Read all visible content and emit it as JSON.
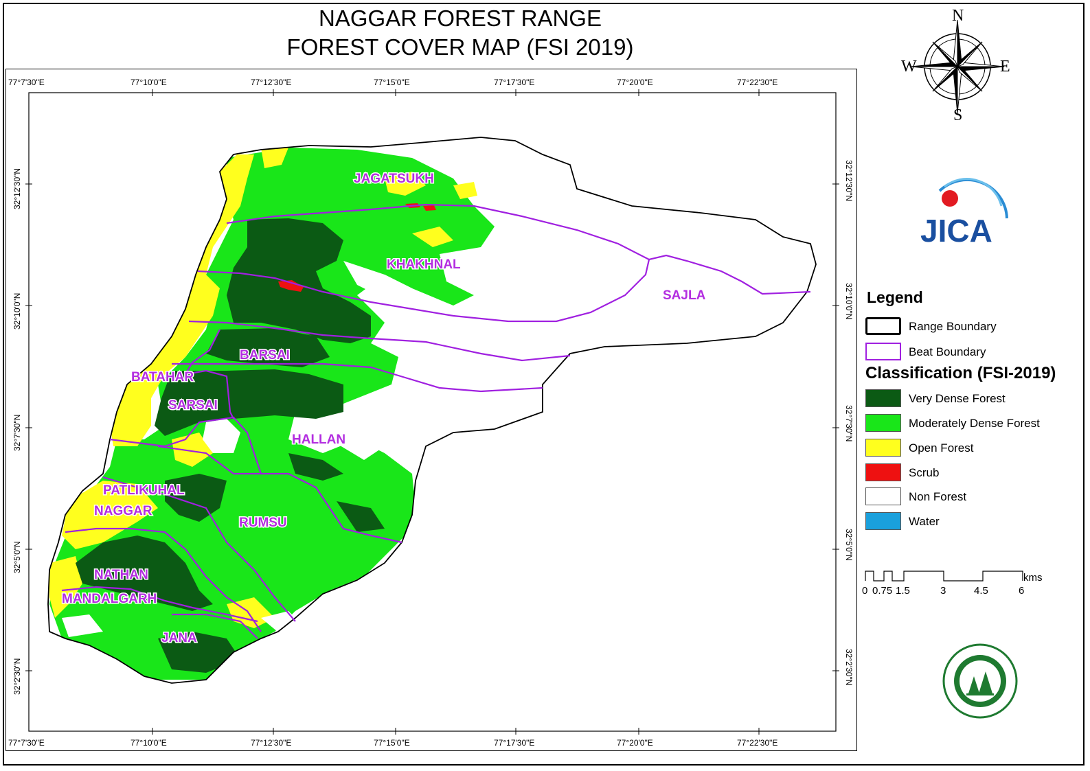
{
  "title": {
    "line1": "NAGGAR FOREST RANGE",
    "line2": "FOREST COVER MAP (FSI 2019)"
  },
  "graticule": {
    "longitudes": [
      "77°7'30\"E",
      "77°10'0\"E",
      "77°12'30\"E",
      "77°15'0\"E",
      "77°17'30\"E",
      "77°20'0\"E",
      "77°22'30\"E"
    ],
    "latitudes": [
      "32°12'30\"N",
      "32°10'0\"N",
      "32°7'30\"N",
      "32°5'0\"N",
      "32°2'30\"N"
    ]
  },
  "compass": {
    "n": "N",
    "s": "S",
    "e": "E",
    "w": "W"
  },
  "beats": {
    "jagatsukh": "JAGATSUKH",
    "khakhnal": "KHAKHNAL",
    "sajla": "SAJLA",
    "barsai": "BARSAI",
    "batahar": "BATAHAR",
    "sarsai": "SARSAI",
    "hallan": "HALLAN",
    "patlikuhal": "PATLIKUHAL",
    "naggar": "NAGGAR",
    "rumsu": "RUMSU",
    "nathan": "NATHAN",
    "mandalgarh": "MANDALGARH",
    "jana": "JANA"
  },
  "logo": {
    "jica": "JICA"
  },
  "legend": {
    "title": "Legend",
    "range_boundary": "Range Boundary",
    "beat_boundary": "Beat Boundary",
    "classification_title": "Classification (FSI-2019)",
    "classes": [
      {
        "label": "Very Dense Forest",
        "color": "#0b5a14"
      },
      {
        "label": "Moderately Dense Forest",
        "color": "#19e619"
      },
      {
        "label": "Open Forest",
        "color": "#ffff1e"
      },
      {
        "label": "Scrub",
        "color": "#ee1111"
      },
      {
        "label": "Non Forest",
        "color": "#ffffff"
      },
      {
        "label": "Water",
        "color": "#1aa0dc"
      }
    ]
  },
  "scale_bar": {
    "unit": "kms",
    "labels": [
      "0",
      "0.75",
      "1.5",
      "3",
      "4.5",
      "6"
    ]
  },
  "colors": {
    "range_boundary": "#000000",
    "beat_boundary": "#a020e0",
    "label_purple": "#b32ee0"
  }
}
